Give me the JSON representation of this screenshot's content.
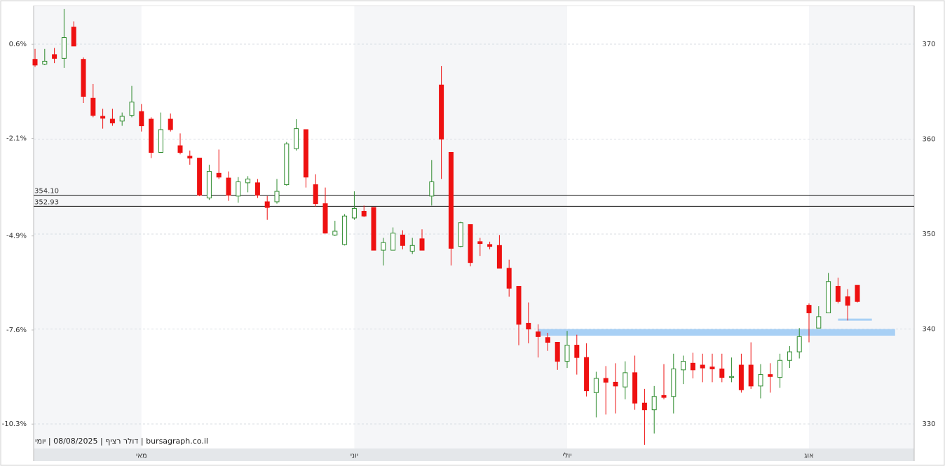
{
  "chart_data": {
    "type": "candlestick",
    "categories": [
      null,
      null,
      null,
      null,
      null,
      null,
      null,
      null,
      null,
      null,
      null,
      "מאי",
      null,
      null,
      null,
      null,
      null,
      null,
      null,
      null,
      null,
      null,
      null,
      null,
      null,
      null,
      null,
      null,
      null,
      null,
      null,
      null,
      null,
      "יוני",
      null,
      null,
      null,
      null,
      null,
      null,
      null,
      null,
      null,
      null,
      null,
      null,
      null,
      null,
      null,
      null,
      null,
      null,
      null,
      null,
      null,
      "יולי",
      null,
      null,
      null,
      null,
      null,
      null,
      null,
      null,
      null,
      null,
      null,
      null,
      null,
      null,
      null,
      null,
      null,
      null,
      null,
      null,
      null,
      null,
      null,
      null,
      "אוג",
      null,
      null,
      null,
      null,
      null
    ],
    "series": [
      {
        "up_color": "#2e8b2e",
        "down_color": "#ee1111",
        "open": [
          368.4,
          367.9,
          368.9,
          368.5,
          371.8,
          368.4,
          364.3,
          362.4,
          362.1,
          361.9,
          362.5,
          362.9,
          362.1,
          358.6,
          362.1,
          359.3,
          358.2,
          358.0,
          353.8,
          356.4,
          355.9,
          354.0,
          355.4,
          355.4,
          353.4,
          353.4,
          355.2,
          359.0,
          361.0,
          355.2,
          353.2,
          349.9,
          348.9,
          351.7,
          352.4,
          352.8,
          348.3,
          348.3,
          349.9,
          348.2,
          349.5,
          354.0,
          365.7,
          358.6,
          348.7,
          351.0,
          349.2,
          348.9,
          348.8,
          346.4,
          344.5,
          340.6,
          339.7,
          339.1,
          338.6,
          336.6,
          338.3,
          337.0,
          333.3,
          334.8,
          334.4,
          333.9,
          335.4,
          332.2,
          331.5,
          333.0,
          332.9,
          335.7,
          336.4,
          336.2,
          336.0,
          335.8,
          334.9,
          336.2,
          336.2,
          334.0,
          335.2,
          334.9,
          336.7,
          337.6,
          342.5,
          340.1,
          341.7,
          344.5,
          343.4,
          344.6
        ],
        "high": [
          369.5,
          369.5,
          369.6,
          373.7,
          372.4,
          368.6,
          365.8,
          363.2,
          363.2,
          362.8,
          365.6,
          363.7,
          362.3,
          362.8,
          362.7,
          360.6,
          358.8,
          358.0,
          357.3,
          358.9,
          356.6,
          356.0,
          356.1,
          355.8,
          354.0,
          355.8,
          359.7,
          362.1,
          361.0,
          356.3,
          354.9,
          351.4,
          352.1,
          354.5,
          353.0,
          352.8,
          349.6,
          350.7,
          350.4,
          349.6,
          350.5,
          357.8,
          367.7,
          358.6,
          351.3,
          351.0,
          349.6,
          349.2,
          349.9,
          347.3,
          344.5,
          342.8,
          340.5,
          339.6,
          338.6,
          339.8,
          339.4,
          338.5,
          335.5,
          336.1,
          336.4,
          336.6,
          337.2,
          333.7,
          334.0,
          336.3,
          337.4,
          337.2,
          337.5,
          337.4,
          337.4,
          337.4,
          337.0,
          337.4,
          338.6,
          336.3,
          336.4,
          337.4,
          338.2,
          340.1,
          342.7,
          342.4,
          345.9,
          345.4,
          344.2,
          344.6
        ],
        "low": [
          367.6,
          367.8,
          368.0,
          367.5,
          369.8,
          363.8,
          362.3,
          361.1,
          361.4,
          361.4,
          362.3,
          360.8,
          358.0,
          358.6,
          360.8,
          358.4,
          357.3,
          354.0,
          353.6,
          355.8,
          353.5,
          353.3,
          354.4,
          353.8,
          351.5,
          353.2,
          355.1,
          358.8,
          354.9,
          352.9,
          350.1,
          349.8,
          348.8,
          351.5,
          351.8,
          348.3,
          346.7,
          348.3,
          348.4,
          347.9,
          348.3,
          353.0,
          355.8,
          346.7,
          348.6,
          346.6,
          347.7,
          348.4,
          346.4,
          343.4,
          338.3,
          338.5,
          337.0,
          337.7,
          335.7,
          335.9,
          335.2,
          332.9,
          330.7,
          331.0,
          331.1,
          332.6,
          331.5,
          327.8,
          329.0,
          332.6,
          331.1,
          334.2,
          334.8,
          334.4,
          334.4,
          334.4,
          334.4,
          333.3,
          333.7,
          332.7,
          333.3,
          333.8,
          335.9,
          336.9,
          338.6,
          340.1,
          341.7,
          342.7,
          340.9,
          342.8
        ],
        "close": [
          367.8,
          368.2,
          368.5,
          370.7,
          369.8,
          364.5,
          362.5,
          362.2,
          361.7,
          362.4,
          363.9,
          361.4,
          358.6,
          361.0,
          361.0,
          358.6,
          358.0,
          354.1,
          356.6,
          356.0,
          354.1,
          355.5,
          355.8,
          354.1,
          352.8,
          354.5,
          359.5,
          361.1,
          356.0,
          353.2,
          350.1,
          350.3,
          351.9,
          352.7,
          351.9,
          348.3,
          349.1,
          350.1,
          348.8,
          348.8,
          348.3,
          355.5,
          360.0,
          348.5,
          351.2,
          347.0,
          349.0,
          348.7,
          346.4,
          344.3,
          340.5,
          340.0,
          339.2,
          338.6,
          336.6,
          338.3,
          337.0,
          333.5,
          334.8,
          334.4,
          334.0,
          335.4,
          332.2,
          331.5,
          332.9,
          332.8,
          335.8,
          336.6,
          335.7,
          335.9,
          335.8,
          334.9,
          335.0,
          333.6,
          334.0,
          335.2,
          335.0,
          336.7,
          337.6,
          339.2,
          341.7,
          341.3,
          345.0,
          342.9,
          342.5,
          342.9
        ]
      }
    ],
    "ylim": [
      327.42,
      374.06
    ],
    "yticks": [
      330,
      340,
      350,
      360,
      370
    ],
    "y2lim": [
      -11.0,
      1.71
    ],
    "y2ticks": [
      {
        "value": 0.6,
        "label": "0.6%"
      },
      {
        "value": -2.1,
        "label": "-2.1%"
      },
      {
        "value": -4.9,
        "label": "-4.9%"
      },
      {
        "value": -7.6,
        "label": "-7.6%"
      },
      {
        "value": -10.3,
        "label": "-10.3%"
      }
    ],
    "levels": [
      {
        "value": 354.1,
        "label": "354.10"
      },
      {
        "value": 352.93,
        "label": "352.93"
      }
    ],
    "zones": [
      {
        "from": 339.3,
        "to": 340.0,
        "start": 52,
        "end": 88.9,
        "color": "#a8d0f5"
      },
      {
        "from": 340.9,
        "to": 341.1,
        "start": 83,
        "end": 86.5,
        "color": "#a8d0f5"
      }
    ],
    "grid": true,
    "footer": "bursagraph.co.il | דולר רציף | 08/08/2025 | יומי"
  }
}
